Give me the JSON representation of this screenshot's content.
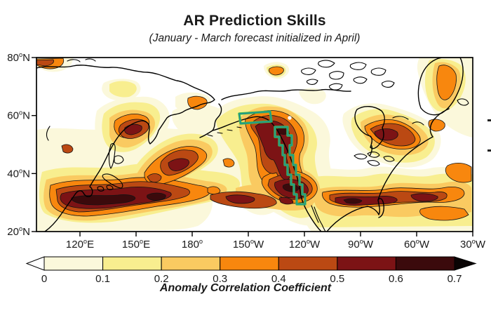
{
  "figure": {
    "title": "AR Prediction Skills",
    "subtitle": "(January - March forecast initialized in April)"
  },
  "map": {
    "x_tick_labels": [
      {
        "deg": "120",
        "hemi": "E"
      },
      {
        "deg": "150",
        "hemi": "E"
      },
      {
        "deg": "180",
        "hemi": ""
      },
      {
        "deg": "150",
        "hemi": "W"
      },
      {
        "deg": "120",
        "hemi": "W"
      },
      {
        "deg": "90",
        "hemi": "W"
      },
      {
        "deg": "60",
        "hemi": "W"
      },
      {
        "deg": "30",
        "hemi": "W"
      }
    ],
    "y_tick_labels": [
      {
        "deg": "80",
        "hemi": "N"
      },
      {
        "deg": "60",
        "hemi": "N"
      },
      {
        "deg": "40",
        "hemi": "N"
      },
      {
        "deg": "20",
        "hemi": "N"
      }
    ],
    "highlight_outline_colors": {
      "outer": "#46be4e",
      "inner": "#1d8f96"
    },
    "marker": "white-dot-station"
  },
  "colorbar": {
    "ticks": [
      "0",
      "0.1",
      "0.2",
      "0.3",
      "0.4",
      "0.5",
      "0.6",
      "0.7"
    ],
    "segment_colors": [
      "#fbf8db",
      "#f8ee8f",
      "#faca61",
      "#f8870e",
      "#bb4913",
      "#7c1315",
      "#3b0a0c"
    ],
    "under_arrow_color": "#ffffff",
    "over_arrow_color": "#0a0404",
    "label": "Anomaly Correlation Coefficient"
  },
  "chart_data": {
    "type": "heatmap",
    "subtype": "filled-contour geographic map",
    "title": "AR Prediction Skills",
    "subtitle": "(January - March forecast initialized in April)",
    "variable": "Anomaly Correlation Coefficient",
    "x_axis": {
      "ticks": [
        "120°E",
        "150°E",
        "180°",
        "150°W",
        "120°W",
        "90°W",
        "60°W",
        "30°W"
      ],
      "range": "~97°E eastward to ~30°W"
    },
    "y_axis": {
      "ticks": [
        "80°N",
        "60°N",
        "40°N",
        "20°N"
      ],
      "range": "20°N to 80°N"
    },
    "color_scale": {
      "breaks": [
        0,
        0.1,
        0.2,
        0.3,
        0.4,
        0.5,
        0.6,
        0.7
      ],
      "colors": [
        "#fbf8db",
        "#f8ee8f",
        "#faca61",
        "#f8870e",
        "#bb4913",
        "#7c1315",
        "#3b0a0c"
      ],
      "under": "white (< 0)",
      "over": "black (> 0.7)",
      "legend_position": "bottom horizontal colorbar with under/over arrow ends"
    },
    "features": [
      {
        "region": "Subtropical western North Pacific south of Japan (~25-35°N, 125-165°E)",
        "acc": "0.5-0.7+ (darkest, highest skill band)"
      },
      {
        "region": "Diagonal central North Pacific band (~30-45°N, 165°E-150°W)",
        "acc": "0.3-0.5"
      },
      {
        "region": "Gulf of Alaska / southeast Alaska coast (~50-60°N, 150-130°W)",
        "acc": "0.4-0.7"
      },
      {
        "region": "Southwestern US and northern Mexico (~25-40°N, 120-105°W)",
        "acc": "0.4-0.7"
      },
      {
        "region": "Southern / southeastern US into subtropical Atlantic (~25-35°N)",
        "acc": "0.3-0.6"
      },
      {
        "region": "Eastern Canada / Labrador (~50-60°N, 75-55°W)",
        "acc": "0.3-0.5"
      },
      {
        "region": "Greenland and far North Atlantic",
        "acc": "0.1-0.4"
      },
      {
        "region": "Arctic Ocean and high latitudes (north of ~60°N interior)",
        "acc": "0-0.1 (white, minimal skill)"
      },
      {
        "region": "Sea of Okhotsk / Kamchatka vicinity",
        "acc": "0.2-0.5 patch"
      }
    ],
    "annotations": [
      {
        "type": "highlight-box",
        "outline": "green/teal double line",
        "label": "Gulf of Alaska coastal box",
        "approx_location": "~57-60°N, 150-137°W"
      },
      {
        "type": "highlight-band",
        "outline": "green/teal double line",
        "label": "stair-stepped US/BC West Coast band",
        "approx_location": "coastal strip ~30-58°N"
      },
      {
        "type": "marker",
        "label": "small white dot inside dark-red Gulf of Alaska maximum",
        "approx_location": "~58°N, 137°W"
      }
    ]
  }
}
